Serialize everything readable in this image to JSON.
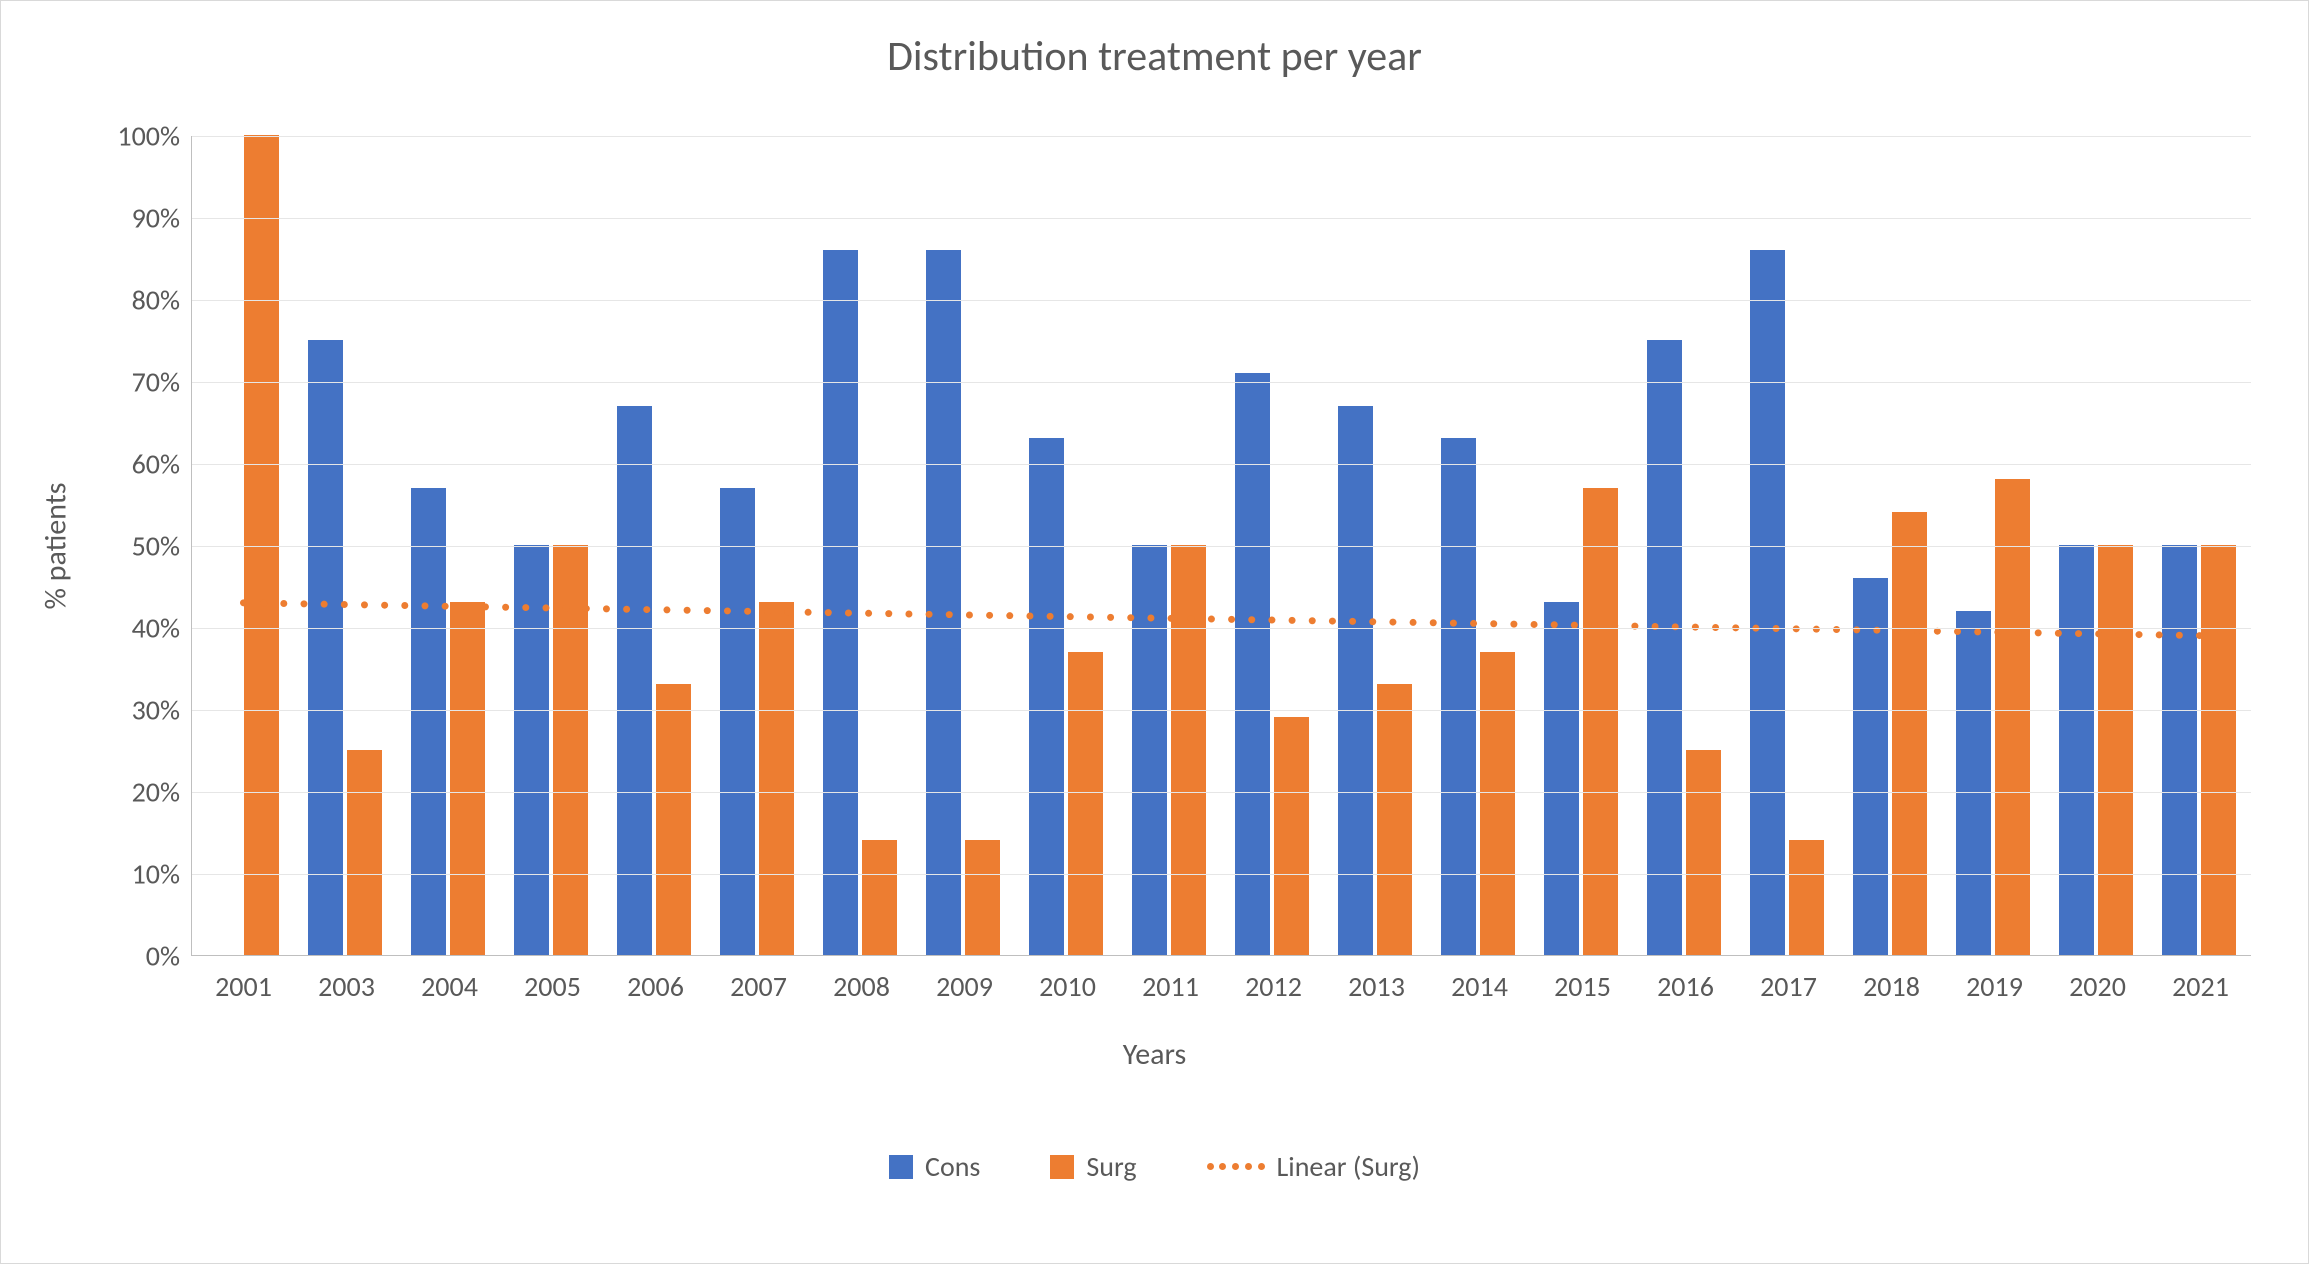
{
  "chart": {
    "type": "bar",
    "title": "Distribution treatment per year",
    "title_fontsize": 42,
    "title_color": "#595959",
    "x_axis_title": "Years",
    "y_axis_title": "% patients",
    "axis_label_fontsize": 30,
    "tick_fontsize": 28,
    "tick_color": "#595959",
    "background_color": "#ffffff",
    "plot_border_color": "#bfbfbf",
    "grid_color": "#e6e6e6",
    "ylim": [
      0,
      100
    ],
    "ytick_step": 10,
    "ytick_suffix": "%",
    "categories": [
      "2001",
      "2003",
      "2004",
      "2005",
      "2006",
      "2007",
      "2008",
      "2009",
      "2010",
      "2011",
      "2012",
      "2013",
      "2014",
      "2015",
      "2016",
      "2017",
      "2018",
      "2019",
      "2020",
      "2021"
    ],
    "series": [
      {
        "name": "Cons",
        "color": "#4472c4",
        "values": [
          0,
          75,
          57,
          50,
          67,
          57,
          86,
          86,
          63,
          50,
          71,
          67,
          63,
          43,
          75,
          86,
          46,
          42,
          50,
          50
        ]
      },
      {
        "name": "Surg",
        "color": "#ed7d31",
        "values": [
          100,
          25,
          43,
          50,
          33,
          43,
          14,
          14,
          37,
          50,
          29,
          33,
          37,
          57,
          25,
          14,
          54,
          58,
          50,
          50
        ]
      }
    ],
    "trendline": {
      "name": "Linear (Surg)",
      "color": "#ed7d31",
      "style": "dotted",
      "dot_size": 7,
      "y_start": 43,
      "y_end": 39
    },
    "bar_gap_ratio": 0.25,
    "legend": {
      "items": [
        "Cons",
        "Surg",
        "Linear (Surg)"
      ]
    }
  }
}
